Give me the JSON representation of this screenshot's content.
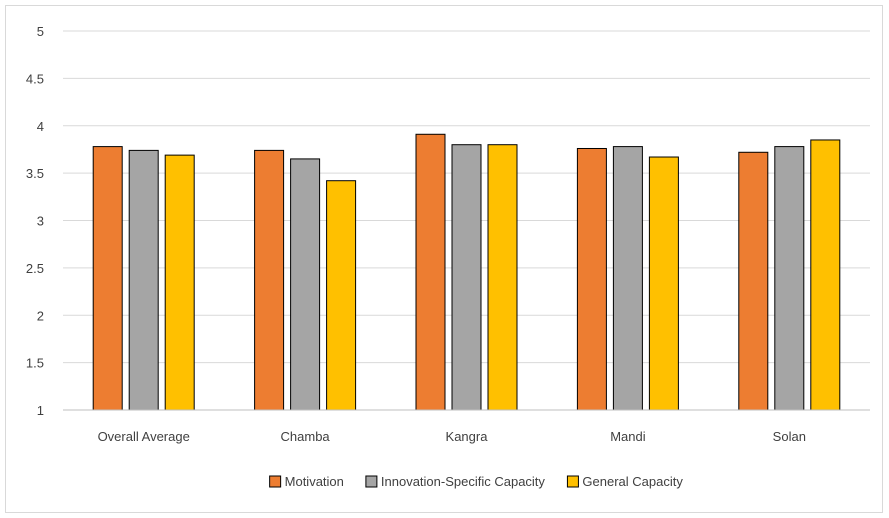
{
  "chart_data": {
    "type": "bar",
    "categories": [
      "Overall Average",
      "Chamba",
      "Kangra",
      "Mandi",
      "Solan"
    ],
    "series": [
      {
        "name": "Motivation",
        "color": "#ed7d31",
        "values": [
          3.78,
          3.74,
          3.91,
          3.76,
          3.72
        ]
      },
      {
        "name": "Innovation-Specific Capacity",
        "color": "#a5a5a5",
        "values": [
          3.74,
          3.65,
          3.8,
          3.78,
          3.78
        ]
      },
      {
        "name": "General Capacity",
        "color": "#ffc000",
        "values": [
          3.69,
          3.42,
          3.8,
          3.67,
          3.85
        ]
      }
    ],
    "ylim": [
      1,
      5
    ],
    "yticks": [
      "1",
      "1.5",
      "2",
      "2.5",
      "3",
      "3.5",
      "4",
      "4.5",
      "5"
    ],
    "grid": true,
    "legend_position": "bottom"
  }
}
